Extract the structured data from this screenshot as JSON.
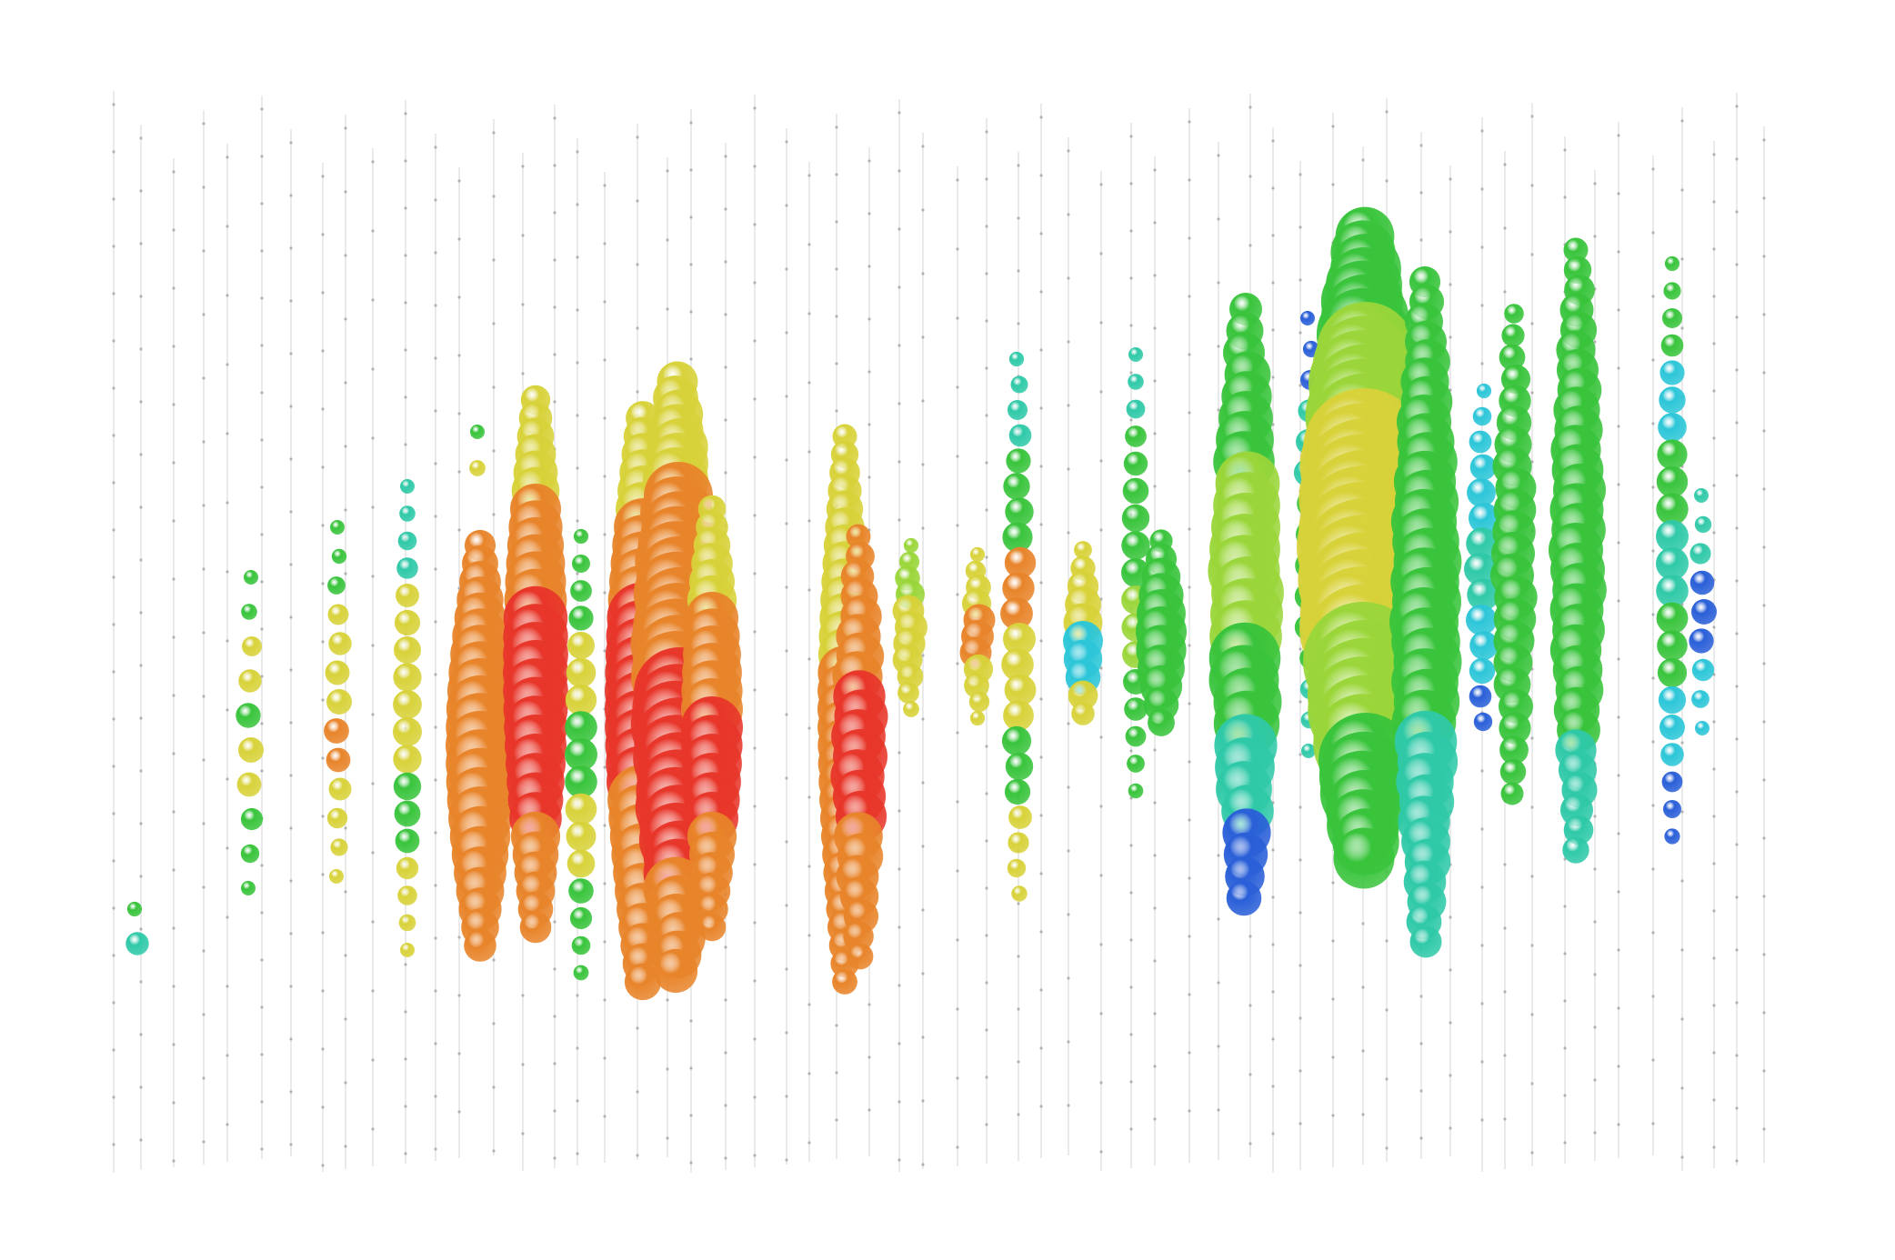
{
  "scene": {
    "description": "",
    "palette": {
      "red": "#e8362a",
      "orange": "#e8842a",
      "yellow": "#d8d23a",
      "lime": "#9ad63a",
      "green": "#39c43c",
      "teal": "#2fc9a8",
      "cyan": "#2cc6d8",
      "blue": "#2a5fd8",
      "violet": "#3a3ad0",
      "string_line": "#b5b5b5",
      "dom_dot": "#8a8a8a"
    }
  }
}
